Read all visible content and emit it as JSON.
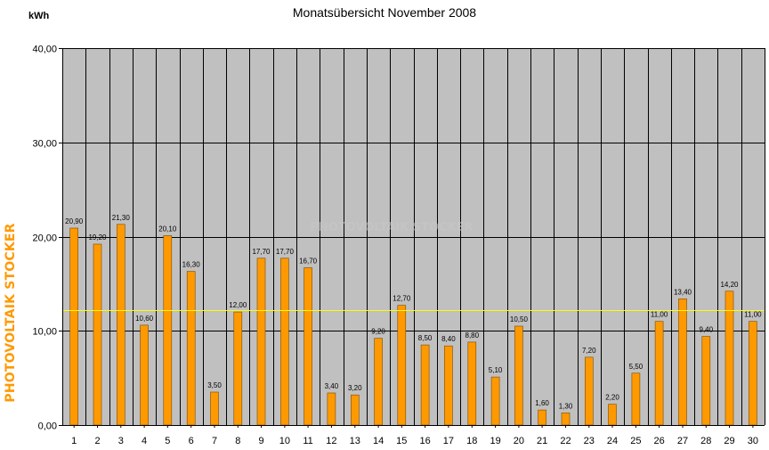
{
  "chart_data": {
    "type": "bar",
    "title": "Monatsübersicht November 2008",
    "ylabel": "kWh",
    "side_label": "PHOTOVOLTAIK STOCKER",
    "watermark": "PHOTOVOLTAIK STOCKER",
    "categories": [
      "1",
      "2",
      "3",
      "4",
      "5",
      "6",
      "7",
      "8",
      "9",
      "10",
      "11",
      "12",
      "13",
      "14",
      "15",
      "16",
      "17",
      "18",
      "19",
      "20",
      "21",
      "22",
      "23",
      "24",
      "25",
      "26",
      "27",
      "28",
      "29",
      "30"
    ],
    "values": [
      20.9,
      19.2,
      21.3,
      10.6,
      20.1,
      16.3,
      3.5,
      12.0,
      17.7,
      17.7,
      16.7,
      3.4,
      3.2,
      9.2,
      12.7,
      8.5,
      8.4,
      8.8,
      5.1,
      10.5,
      1.6,
      1.3,
      7.2,
      2.2,
      5.5,
      11.0,
      13.4,
      9.4,
      14.2,
      11.0
    ],
    "value_labels": [
      "20,90",
      "19,20",
      "21,30",
      "10,60",
      "20,10",
      "16,30",
      "3,50",
      "12,00",
      "17,70",
      "17,70",
      "16,70",
      "3,40",
      "3,20",
      "9,20",
      "12,70",
      "8,50",
      "8,40",
      "8,80",
      "5,10",
      "10,50",
      "1,60",
      "1,30",
      "7,20",
      "2,20",
      "5,50",
      "11,00",
      "13,40",
      "9,40",
      "14,20",
      "11,00"
    ],
    "yticks": [
      0,
      10,
      20,
      30,
      40
    ],
    "ytick_labels": [
      "0,00",
      "10,00",
      "20,00",
      "30,00",
      "40,00"
    ],
    "ylim": [
      0,
      40
    ],
    "average_line": 12.2,
    "grid": true,
    "colors": {
      "bar_fill": "#ff9900",
      "bar_edge": "#7a4a00",
      "plot_bg": "#c0c0c0",
      "grid": "#000000",
      "average_line": "#ffff00",
      "side_label": "#ff9900"
    }
  }
}
